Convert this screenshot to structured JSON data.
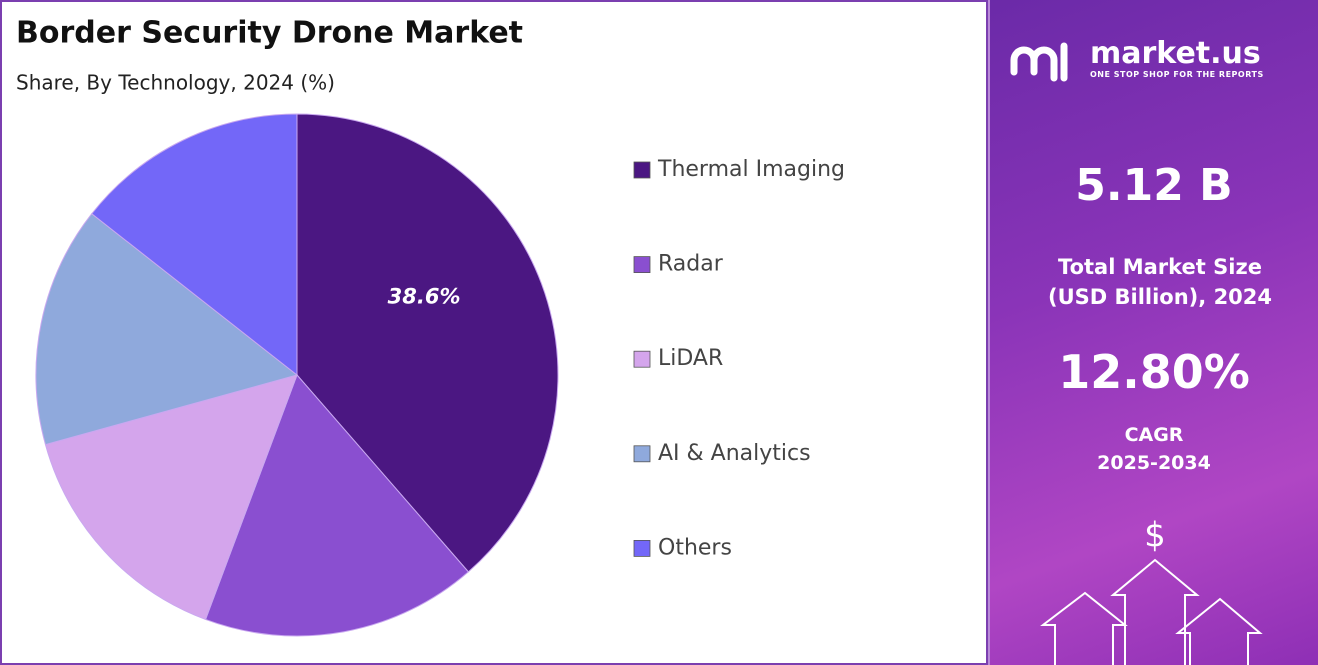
{
  "chart_data": {
    "type": "pie",
    "title": "Border Security Drone Market",
    "subtitle": "Share, By Technology, 2024 (%)",
    "categories": [
      "Thermal Imaging",
      "Radar",
      "LiDAR",
      "AI & Analytics",
      "Others"
    ],
    "values": [
      38.6,
      17.1,
      15.0,
      14.9,
      14.4
    ],
    "value_labels": [
      "38.6%",
      null,
      null,
      null,
      null
    ],
    "colors": [
      "#4b1782",
      "#8a4fd0",
      "#d4a5ec",
      "#8fa9dc",
      "#7367f8"
    ],
    "legend": "right"
  },
  "panel": {
    "brand": "market.us",
    "tagline": "ONE STOP SHOP FOR THE REPORTS",
    "market_size": "5.12 B",
    "market_size_label": "Total Market Size (USD Billion), 2024",
    "cagr": "12.80%",
    "cagr_label": "CAGR",
    "cagr_period": "2025-2034"
  }
}
